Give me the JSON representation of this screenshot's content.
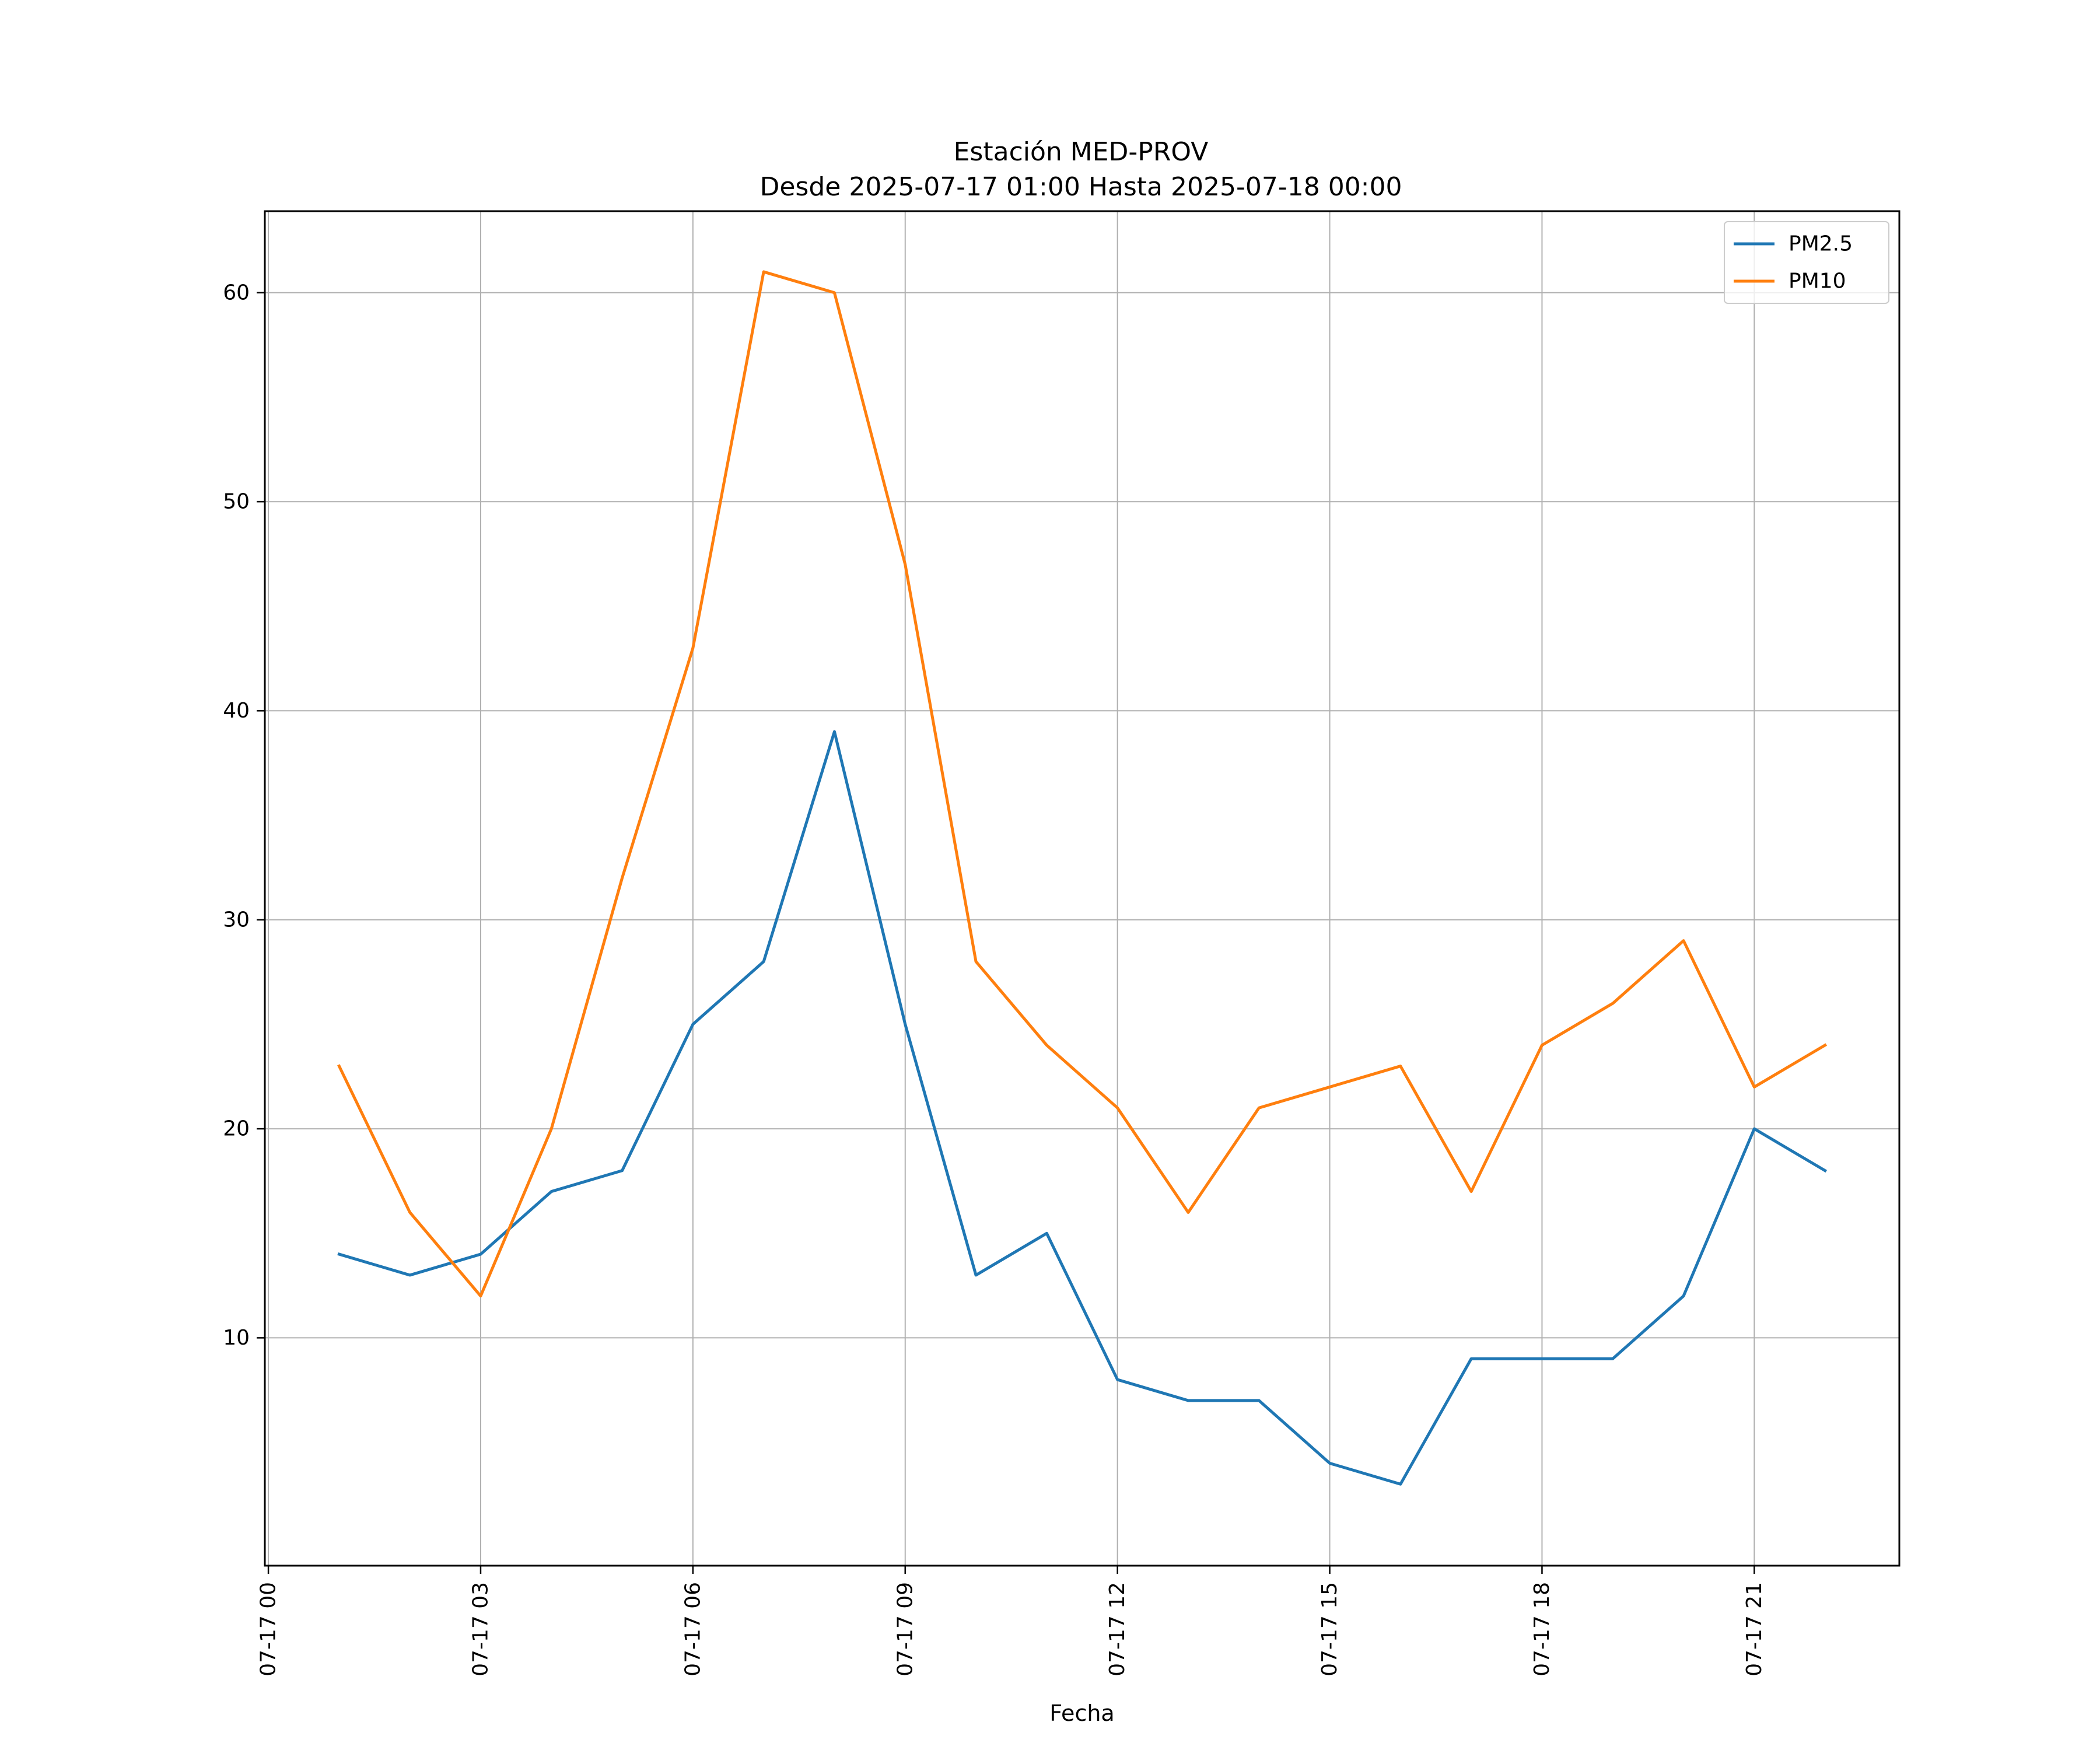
{
  "chart_data": {
    "type": "line",
    "title": "Estación MED-PROV",
    "subtitle": "Desde 2025-07-17 01:00 Hasta 2025-07-18 00:00",
    "xlabel": "Fecha",
    "ylabel": "",
    "x_hours": [
      1,
      2,
      3,
      4,
      5,
      6,
      7,
      8,
      9,
      10,
      11,
      12,
      13,
      14,
      15,
      16,
      17,
      18,
      19,
      20,
      21,
      22
    ],
    "x_tick_hours": [
      0,
      3,
      6,
      9,
      12,
      15,
      18,
      21
    ],
    "x_tick_labels": [
      "07-17 00",
      "07-17 03",
      "07-17 06",
      "07-17 09",
      "07-17 12",
      "07-17 15",
      "07-17 18",
      "07-17 21"
    ],
    "xlim_hours": [
      -0.05,
      23.05
    ],
    "y_ticks": [
      10,
      20,
      30,
      40,
      50,
      60
    ],
    "ylim": [
      -0.9,
      63.9
    ],
    "grid": true,
    "legend_position": "top-right",
    "series": [
      {
        "name": "PM2.5",
        "color": "#1f77b4",
        "values": [
          14,
          13,
          14,
          17,
          18,
          25,
          28,
          39,
          25,
          13,
          15,
          8,
          7,
          7,
          4,
          3,
          9,
          9,
          9,
          12,
          20,
          18
        ]
      },
      {
        "name": "PM10",
        "color": "#ff7f0e",
        "values": [
          23,
          16,
          12,
          20,
          32,
          43,
          61,
          60,
          47,
          28,
          24,
          21,
          16,
          21,
          22,
          23,
          17,
          24,
          26,
          29,
          22,
          24
        ]
      }
    ]
  }
}
